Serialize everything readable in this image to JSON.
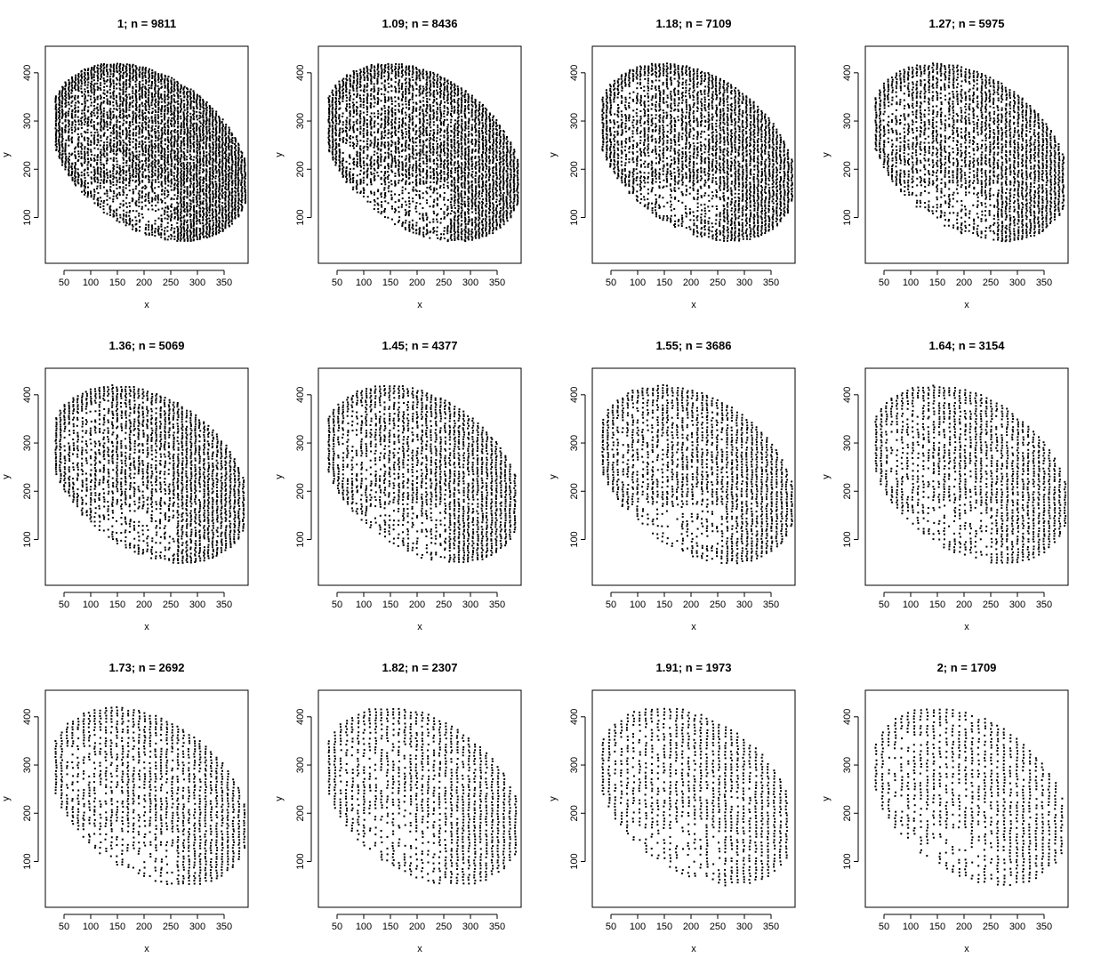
{
  "chart_data": [
    {
      "type": "scatter",
      "title": "1; n = 9811",
      "n": 9811,
      "thin": 1.0,
      "xlabel": "x",
      "ylabel": "y",
      "xlim": [
        15,
        395
      ],
      "ylim": [
        5,
        455
      ],
      "xticks": [
        50,
        100,
        150,
        200,
        250,
        300,
        350
      ],
      "yticks": [
        100,
        200,
        300,
        400
      ],
      "grid": false
    },
    {
      "type": "scatter",
      "title": "1.09; n = 8436",
      "n": 8436,
      "thin": 1.09,
      "xlabel": "x",
      "ylabel": "y",
      "xlim": [
        15,
        395
      ],
      "ylim": [
        5,
        455
      ],
      "xticks": [
        50,
        100,
        150,
        200,
        250,
        300,
        350
      ],
      "yticks": [
        100,
        200,
        300,
        400
      ],
      "grid": false
    },
    {
      "type": "scatter",
      "title": "1.18; n = 7109",
      "n": 7109,
      "thin": 1.18,
      "xlabel": "x",
      "ylabel": "y",
      "xlim": [
        15,
        395
      ],
      "ylim": [
        5,
        455
      ],
      "xticks": [
        50,
        100,
        150,
        200,
        250,
        300,
        350
      ],
      "yticks": [
        100,
        200,
        300,
        400
      ],
      "grid": false
    },
    {
      "type": "scatter",
      "title": "1.27; n = 5975",
      "n": 5975,
      "thin": 1.27,
      "xlabel": "x",
      "ylabel": "y",
      "xlim": [
        15,
        395
      ],
      "ylim": [
        5,
        455
      ],
      "xticks": [
        50,
        100,
        150,
        200,
        250,
        300,
        350
      ],
      "yticks": [
        100,
        200,
        300,
        400
      ],
      "grid": false
    },
    {
      "type": "scatter",
      "title": "1.36; n = 5069",
      "n": 5069,
      "thin": 1.36,
      "xlabel": "x",
      "ylabel": "y",
      "xlim": [
        15,
        395
      ],
      "ylim": [
        5,
        455
      ],
      "xticks": [
        50,
        100,
        150,
        200,
        250,
        300,
        350
      ],
      "yticks": [
        100,
        200,
        300,
        400
      ],
      "grid": false
    },
    {
      "type": "scatter",
      "title": "1.45; n = 4377",
      "n": 4377,
      "thin": 1.45,
      "xlabel": "x",
      "ylabel": "y",
      "xlim": [
        15,
        395
      ],
      "ylim": [
        5,
        455
      ],
      "xticks": [
        50,
        100,
        150,
        200,
        250,
        300,
        350
      ],
      "yticks": [
        100,
        200,
        300,
        400
      ],
      "grid": false
    },
    {
      "type": "scatter",
      "title": "1.55; n = 3686",
      "n": 3686,
      "thin": 1.55,
      "xlabel": "x",
      "ylabel": "y",
      "xlim": [
        15,
        395
      ],
      "ylim": [
        5,
        455
      ],
      "xticks": [
        50,
        100,
        150,
        200,
        250,
        300,
        350
      ],
      "yticks": [
        100,
        200,
        300,
        400
      ],
      "grid": false
    },
    {
      "type": "scatter",
      "title": "1.64; n = 3154",
      "n": 3154,
      "thin": 1.64,
      "xlabel": "x",
      "ylabel": "y",
      "xlim": [
        15,
        395
      ],
      "ylim": [
        5,
        455
      ],
      "xticks": [
        50,
        100,
        150,
        200,
        250,
        300,
        350
      ],
      "yticks": [
        100,
        200,
        300,
        400
      ],
      "grid": false
    },
    {
      "type": "scatter",
      "title": "1.73; n = 2692",
      "n": 2692,
      "thin": 1.73,
      "xlabel": "x",
      "ylabel": "y",
      "xlim": [
        15,
        395
      ],
      "ylim": [
        5,
        455
      ],
      "xticks": [
        50,
        100,
        150,
        200,
        250,
        300,
        350
      ],
      "yticks": [
        100,
        200,
        300,
        400
      ],
      "grid": false
    },
    {
      "type": "scatter",
      "title": "1.82; n = 2307",
      "n": 2307,
      "thin": 1.82,
      "xlabel": "x",
      "ylabel": "y",
      "xlim": [
        15,
        395
      ],
      "ylim": [
        5,
        455
      ],
      "xticks": [
        50,
        100,
        150,
        200,
        250,
        300,
        350
      ],
      "yticks": [
        100,
        200,
        300,
        400
      ],
      "grid": false
    },
    {
      "type": "scatter",
      "title": "1.91; n = 1973",
      "n": 1973,
      "thin": 1.91,
      "xlabel": "x",
      "ylabel": "y",
      "xlim": [
        15,
        395
      ],
      "ylim": [
        5,
        455
      ],
      "xticks": [
        50,
        100,
        150,
        200,
        250,
        300,
        350
      ],
      "yticks": [
        100,
        200,
        300,
        400
      ],
      "grid": false
    },
    {
      "type": "scatter",
      "title": "2; n = 1709",
      "n": 1709,
      "thin": 2.0,
      "xlabel": "x",
      "ylabel": "y",
      "xlim": [
        15,
        395
      ],
      "ylim": [
        5,
        455
      ],
      "xticks": [
        50,
        100,
        150,
        200,
        250,
        300,
        350
      ],
      "yticks": [
        100,
        200,
        300,
        400
      ],
      "grid": false
    }
  ],
  "style": {
    "point_color": "#000000",
    "axis_color": "#000000",
    "background": "#ffffff"
  }
}
